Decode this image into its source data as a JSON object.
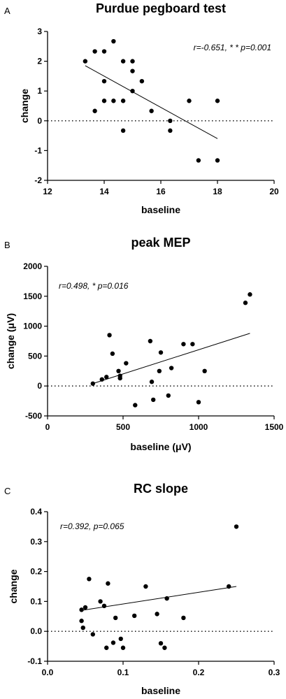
{
  "chart_data": [
    {
      "type": "scatter",
      "panel": "A",
      "title": "Purdue pegboard test",
      "xlabel": "baseline",
      "ylabel": "change",
      "xlim": [
        12,
        20
      ],
      "ylim": [
        -2,
        3
      ],
      "xticks": [
        12,
        14,
        16,
        18,
        20
      ],
      "yticks": [
        -2,
        -1,
        0,
        1,
        2,
        3
      ],
      "annotation": "r=-0.651, * * p=0.001",
      "annotation_position": "top-right",
      "reference_line_y": 0,
      "fit": {
        "x": [
          13.33,
          18.0
        ],
        "y": [
          1.85,
          -0.6
        ]
      },
      "points": [
        {
          "x": 13.33,
          "y": 2.0
        },
        {
          "x": 13.67,
          "y": 2.33
        },
        {
          "x": 13.67,
          "y": 0.33
        },
        {
          "x": 14.0,
          "y": 2.33
        },
        {
          "x": 14.0,
          "y": 1.33
        },
        {
          "x": 14.0,
          "y": 0.67
        },
        {
          "x": 14.33,
          "y": 2.67
        },
        {
          "x": 14.33,
          "y": 0.67
        },
        {
          "x": 14.67,
          "y": 2.0
        },
        {
          "x": 14.67,
          "y": 0.67
        },
        {
          "x": 14.67,
          "y": -0.33
        },
        {
          "x": 15.0,
          "y": 2.0
        },
        {
          "x": 15.0,
          "y": 1.67
        },
        {
          "x": 15.0,
          "y": 1.0
        },
        {
          "x": 15.33,
          "y": 1.33
        },
        {
          "x": 15.67,
          "y": 0.33
        },
        {
          "x": 16.33,
          "y": 0.0
        },
        {
          "x": 16.33,
          "y": -0.33
        },
        {
          "x": 17.0,
          "y": 0.67
        },
        {
          "x": 17.33,
          "y": -1.33
        },
        {
          "x": 18.0,
          "y": 0.67
        },
        {
          "x": 18.0,
          "y": -1.33
        }
      ]
    },
    {
      "type": "scatter",
      "panel": "B",
      "title": "peak MEP",
      "xlabel": "baseline (μV)",
      "ylabel": "change (μV)",
      "xlim": [
        0,
        1500
      ],
      "ylim": [
        -500,
        2000
      ],
      "xticks": [
        0,
        500,
        1000,
        1500
      ],
      "yticks": [
        -500,
        0,
        500,
        1000,
        1500,
        2000
      ],
      "annotation": "r=0.498, * p=0.016",
      "annotation_position": "top-left",
      "reference_line_y": 0,
      "fit": {
        "x": [
          300,
          1340
        ],
        "y": [
          40,
          880
        ]
      },
      "points": [
        {
          "x": 300,
          "y": 40
        },
        {
          "x": 360,
          "y": 110
        },
        {
          "x": 390,
          "y": 150
        },
        {
          "x": 410,
          "y": 850
        },
        {
          "x": 430,
          "y": 540
        },
        {
          "x": 470,
          "y": 250
        },
        {
          "x": 480,
          "y": 170
        },
        {
          "x": 480,
          "y": 130
        },
        {
          "x": 520,
          "y": 380
        },
        {
          "x": 580,
          "y": -320
        },
        {
          "x": 680,
          "y": 750
        },
        {
          "x": 690,
          "y": 70
        },
        {
          "x": 700,
          "y": -230
        },
        {
          "x": 740,
          "y": 250
        },
        {
          "x": 750,
          "y": 560
        },
        {
          "x": 800,
          "y": -160
        },
        {
          "x": 820,
          "y": 300
        },
        {
          "x": 900,
          "y": 700
        },
        {
          "x": 960,
          "y": 700
        },
        {
          "x": 1000,
          "y": -270
        },
        {
          "x": 1040,
          "y": 250
        },
        {
          "x": 1310,
          "y": 1390
        },
        {
          "x": 1340,
          "y": 1530
        }
      ]
    },
    {
      "type": "scatter",
      "panel": "C",
      "title": "RC slope",
      "xlabel": "baseline",
      "ylabel": "change",
      "xlim": [
        0.0,
        0.3
      ],
      "ylim": [
        -0.1,
        0.4
      ],
      "xticks": [
        0.0,
        0.1,
        0.2,
        0.3
      ],
      "yticks": [
        -0.1,
        0.0,
        0.1,
        0.2,
        0.3,
        0.4
      ],
      "xtick_labels": [
        "0.0",
        "0.1",
        "0.2",
        "0.3"
      ],
      "ytick_labels": [
        "-0.1",
        "0.0",
        "0.1",
        "0.2",
        "0.3",
        "0.4"
      ],
      "annotation": "r=0.392, p=0.065",
      "annotation_position": "top-left",
      "reference_line_y": 0,
      "fit": {
        "x": [
          0.045,
          0.25
        ],
        "y": [
          0.07,
          0.15
        ]
      },
      "points": [
        {
          "x": 0.045,
          "y": 0.072
        },
        {
          "x": 0.045,
          "y": 0.035
        },
        {
          "x": 0.047,
          "y": 0.012
        },
        {
          "x": 0.05,
          "y": 0.08
        },
        {
          "x": 0.055,
          "y": 0.175
        },
        {
          "x": 0.06,
          "y": -0.01
        },
        {
          "x": 0.07,
          "y": 0.1
        },
        {
          "x": 0.075,
          "y": 0.085
        },
        {
          "x": 0.078,
          "y": -0.055
        },
        {
          "x": 0.08,
          "y": 0.16
        },
        {
          "x": 0.087,
          "y": -0.038
        },
        {
          "x": 0.09,
          "y": 0.045
        },
        {
          "x": 0.097,
          "y": -0.025
        },
        {
          "x": 0.1,
          "y": -0.055
        },
        {
          "x": 0.115,
          "y": 0.052
        },
        {
          "x": 0.13,
          "y": 0.15
        },
        {
          "x": 0.145,
          "y": 0.058
        },
        {
          "x": 0.15,
          "y": -0.04
        },
        {
          "x": 0.155,
          "y": -0.055
        },
        {
          "x": 0.158,
          "y": 0.11
        },
        {
          "x": 0.18,
          "y": 0.045
        },
        {
          "x": 0.24,
          "y": 0.15
        },
        {
          "x": 0.25,
          "y": 0.35
        }
      ]
    }
  ]
}
